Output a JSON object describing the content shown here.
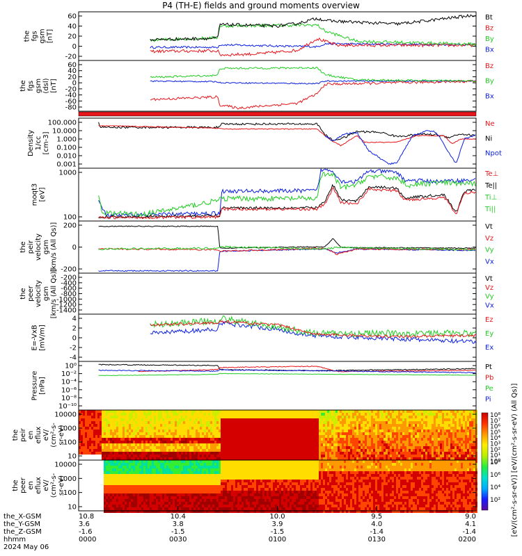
{
  "title": "P4 (TH-E) fields and ground moments overview",
  "colors": {
    "black": "#000000",
    "red": "#e8151b",
    "green": "#22cc22",
    "blue": "#0a1ee0"
  },
  "chart_data": [
    {
      "type": "line",
      "id": "p1",
      "ylabel": [
        "the",
        "fgs",
        "gsm",
        "[nT]"
      ],
      "yticks": [
        "60",
        "40",
        "20",
        "0",
        "-20"
      ],
      "legend": [
        {
          "name": "Bt",
          "color": "black"
        },
        {
          "name": "Bz",
          "color": "red"
        },
        {
          "name": "By",
          "color": "green"
        },
        {
          "name": "Bx",
          "color": "blue"
        }
      ]
    },
    {
      "type": "line",
      "id": "p2",
      "ylabel": [
        "the",
        "fgs",
        "gsm",
        "(dsl)",
        "[nT]"
      ],
      "yticks": [
        "60",
        "40",
        "20",
        "0",
        "-20",
        "-40",
        "-60",
        "-80"
      ],
      "legend": [
        {
          "name": "Bz",
          "color": "red"
        },
        {
          "name": "By",
          "color": "green"
        },
        {
          "name": "Bx",
          "color": "blue"
        }
      ]
    },
    {
      "type": "line",
      "id": "p3",
      "ylabel": [
        "Density",
        "1/cc",
        "[cm-3]"
      ],
      "yticks": [
        "100.000",
        "10.000",
        "1.000",
        "0.100",
        "0.010",
        "0.001"
      ],
      "legend": [
        {
          "name": "Ne",
          "color": "red"
        },
        {
          "name": "Ni",
          "color": "black"
        },
        {
          "name": "Npot",
          "color": "blue"
        }
      ]
    },
    {
      "type": "line",
      "id": "p4",
      "ylabel": [
        "moqt3",
        "[eV]"
      ],
      "yticks": [
        "1000",
        "100"
      ],
      "legend": [
        {
          "name": "Te⊥",
          "color": "red"
        },
        {
          "name": "Te||",
          "color": "black"
        },
        {
          "name": "Ti⊥",
          "color": "green"
        },
        {
          "name": "Ti||",
          "color": "green"
        }
      ]
    },
    {
      "type": "line",
      "id": "p5",
      "ylabel": [
        "the",
        "peir",
        "velocity",
        "gsm",
        "[km/s (All Qs)]"
      ],
      "yticks": [
        "200",
        "0",
        "-200"
      ],
      "legend": [
        {
          "name": "Vt",
          "color": "black"
        },
        {
          "name": "Vz",
          "color": "red"
        },
        {
          "name": "Vy",
          "color": "green"
        },
        {
          "name": "Vx",
          "color": "blue"
        }
      ]
    },
    {
      "type": "line",
      "id": "p6",
      "ylabel": [
        "the",
        "peer",
        "velocity",
        "gsm",
        "[km/s (All Qs)]"
      ],
      "yticks": [
        "-200",
        "-400",
        "-600",
        "-800",
        "-1000",
        "-1200",
        "-1400"
      ],
      "legend": [
        {
          "name": "Vt",
          "color": "black"
        },
        {
          "name": "Vz",
          "color": "red"
        },
        {
          "name": "Vy",
          "color": "green"
        },
        {
          "name": "Vx",
          "color": "blue"
        }
      ]
    },
    {
      "type": "line",
      "id": "p7",
      "ylabel": [
        "E=-VxB",
        "[mV/m]"
      ],
      "yticks": [
        "4",
        "2",
        "0",
        "-2",
        "-4"
      ],
      "legend": [
        {
          "name": "Ez",
          "color": "red"
        },
        {
          "name": "Ey",
          "color": "green"
        },
        {
          "name": "Ex",
          "color": "blue"
        }
      ]
    },
    {
      "type": "line",
      "id": "p8",
      "ylabel": [
        "Pressure",
        "[nPa]"
      ],
      "yticks": [
        "10⁰",
        "10⁻²",
        "10⁻⁴",
        "10⁻⁶",
        "10⁻⁸",
        "10⁻¹⁰"
      ],
      "legend": [
        {
          "name": "Pt",
          "color": "black"
        },
        {
          "name": "Pb",
          "color": "red"
        },
        {
          "name": "Pe",
          "color": "green"
        },
        {
          "name": "Pi",
          "color": "blue"
        }
      ]
    },
    {
      "type": "heatmap",
      "id": "p9",
      "ylabel": [
        "the",
        "peir",
        "en",
        "eflux",
        "eV/",
        "(cm²-s-",
        "sr-eV)"
      ],
      "yticks": [
        "10000",
        "1000",
        "100",
        "10"
      ]
    },
    {
      "type": "heatmap",
      "id": "p10",
      "ylabel": [
        "the",
        "peer",
        "en",
        "eflux",
        "eV/",
        "(cm²-s-",
        "sr-eV)"
      ],
      "yticks": [
        "10000",
        "1000",
        "100",
        "10"
      ]
    }
  ],
  "colorbar": {
    "ticks": [
      "10⁸",
      "10⁷",
      "10⁶",
      "10⁵",
      "10⁴",
      "10³",
      "10²",
      "10¹",
      "10⁰"
    ],
    "ticks2": [
      "10⁸",
      "10⁶",
      "10⁴",
      "10²"
    ],
    "label": "[eV/(cm²-s-sr-eV)] [eV/(cm²-s-sr-eV) (All Qs)]"
  },
  "axis": {
    "rows": [
      {
        "name": "the_X-GSM",
        "values": [
          "10.8",
          "10.4",
          "10.0",
          "9.5",
          "9.0"
        ]
      },
      {
        "name": "the_Y-GSM",
        "values": [
          "3.6",
          "3.8",
          "3.9",
          "4.0",
          "4.1"
        ]
      },
      {
        "name": "the_Z-GSM",
        "values": [
          "-1.6",
          "-1.5",
          "-1.5",
          "-1.4",
          "-1.4"
        ]
      },
      {
        "name": "hhmm",
        "values": [
          "0000",
          "0030",
          "0100",
          "0130",
          "0200"
        ]
      }
    ],
    "date": "2024 May 06"
  }
}
